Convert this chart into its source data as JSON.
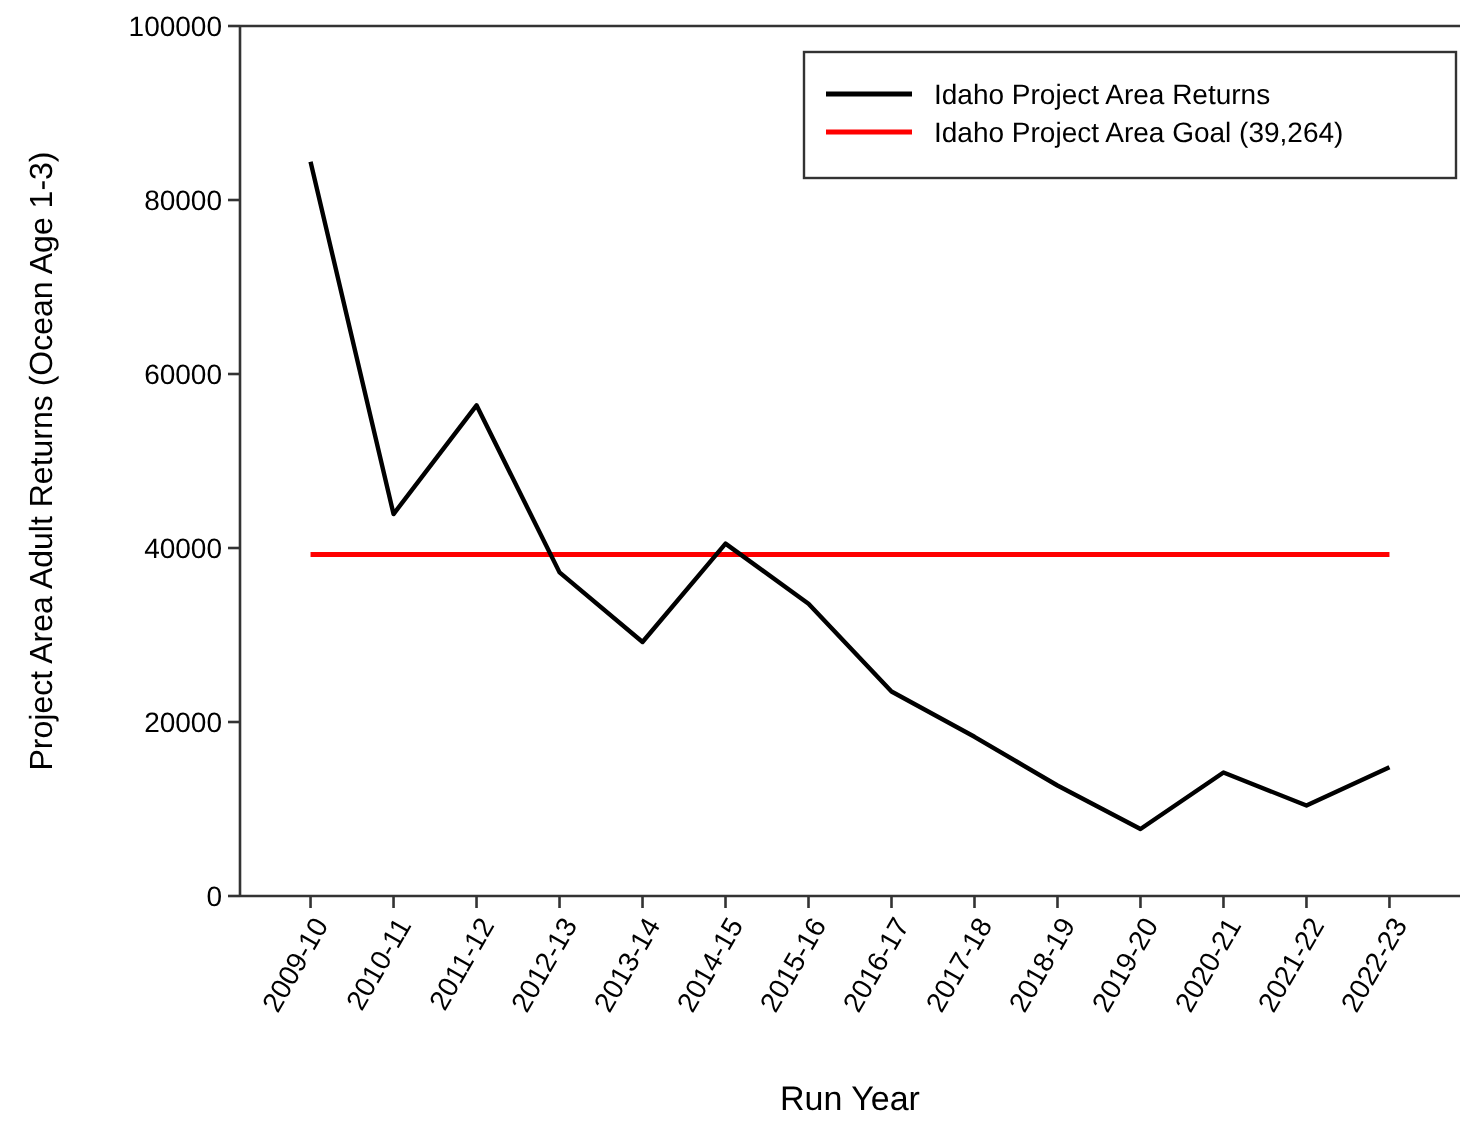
{
  "chart_data": {
    "type": "line",
    "xlabel": "Run Year",
    "ylabel": "Project Area Adult Returns (Ocean Age 1-3)",
    "categories": [
      "2009-10",
      "2010-11",
      "2011-12",
      "2012-13",
      "2013-14",
      "2014-15",
      "2015-16",
      "2016-17",
      "2017-18",
      "2018-19",
      "2019-20",
      "2020-21",
      "2021-22",
      "2022-23"
    ],
    "series": [
      {
        "name": "Idaho Project Area Returns",
        "color": "#000000",
        "values": [
          84400,
          43900,
          56400,
          37200,
          29200,
          40500,
          33600,
          23500,
          18300,
          12700,
          7700,
          14200,
          10400,
          14800
        ]
      }
    ],
    "ref_lines": [
      {
        "axis": "y",
        "value": 39264,
        "label": "Idaho Project Area Goal (39,264)",
        "color": "#ff0000"
      }
    ],
    "ylim": [
      0,
      100000
    ],
    "yticks": [
      0,
      20000,
      40000,
      60000,
      80000,
      100000
    ],
    "grid": false,
    "legend": "top right",
    "marker": "none",
    "line_style": "solid"
  }
}
